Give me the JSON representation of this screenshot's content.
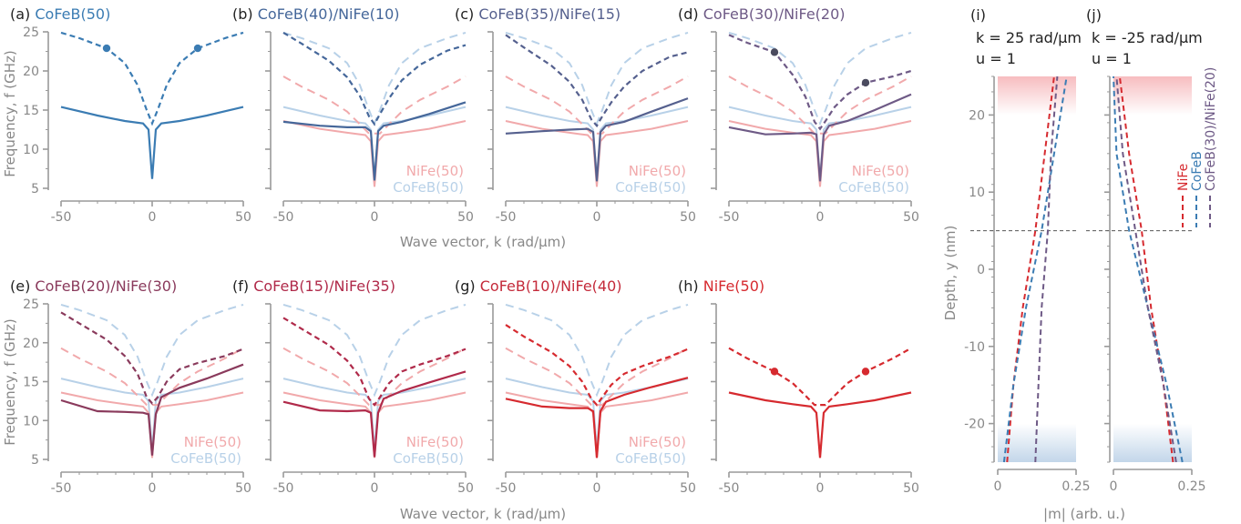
{
  "colors": {
    "cofeb": "#3b7cb3",
    "nife": "#d62a2f",
    "ref_cofeb": "#b8d1e8",
    "ref_nife": "#f1a9ab",
    "axis": "#9a9a9a",
    "label": "#888888",
    "bilayer_30_20": "#6e5a86",
    "bilayer_20_30": "#8a3a5c",
    "dot_dark": "#4b4b5f"
  },
  "shared": {
    "xlabel": "Wave vector, k (rad/µm)",
    "ylabel": "Frequency, f (GHz)",
    "ref_nife_label": "NiFe(50)",
    "ref_cofeb_label": "CoFeB(50)",
    "x_ticks": [
      "-50",
      "0",
      "50"
    ],
    "y_ticks": [
      "5",
      "10",
      "15",
      "20",
      "25"
    ]
  },
  "chart_data": [
    {
      "type": "line",
      "panel": "(a)",
      "title": "CoFeB(50)",
      "xlim": [
        -50,
        50
      ],
      "ylim": [
        5,
        25
      ],
      "series": [
        {
          "style": "solid",
          "x": [
            -50,
            -30,
            -15,
            -5,
            -2,
            0,
            2,
            5,
            15,
            30,
            50
          ],
          "y": [
            15.4,
            14.3,
            13.6,
            13.3,
            12.5,
            6.2,
            12.5,
            13.3,
            13.6,
            14.3,
            15.4
          ]
        },
        {
          "style": "dashed",
          "x": [
            -50,
            -40,
            -25,
            -15,
            -8,
            -3,
            0,
            3,
            8,
            15,
            25,
            40,
            50
          ],
          "y": [
            24.9,
            24.2,
            22.9,
            21,
            18.2,
            15,
            13.3,
            15,
            18.2,
            21,
            22.9,
            24.2,
            24.9
          ]
        }
      ],
      "points": [
        {
          "x": -25,
          "y": 22.9
        },
        {
          "x": 25,
          "y": 22.9
        }
      ]
    },
    {
      "type": "line",
      "panel": "(b)",
      "title": "CoFeB(40)/NiFe(10)",
      "xlim": [
        -50,
        50
      ],
      "ylim": [
        5,
        25
      ],
      "series": [
        {
          "style": "solid",
          "x": [
            -50,
            -30,
            -15,
            -5,
            -2,
            0,
            2,
            5,
            15,
            30,
            50
          ],
          "y": [
            13.5,
            13,
            12.8,
            12.8,
            12.3,
            6,
            12.3,
            13,
            13.5,
            14.5,
            16
          ]
        },
        {
          "style": "dashed",
          "x": [
            -50,
            -40,
            -25,
            -15,
            -8,
            -3,
            0,
            3,
            8,
            15,
            25,
            40,
            50
          ],
          "y": [
            24.9,
            23.5,
            21.3,
            19.2,
            16.8,
            14.2,
            13.2,
            14.5,
            16.5,
            18.8,
            20.8,
            22.6,
            23.3
          ]
        }
      ]
    },
    {
      "type": "line",
      "panel": "(c)",
      "title": "CoFeB(35)/NiFe(15)",
      "xlim": [
        -50,
        50
      ],
      "ylim": [
        5,
        25
      ],
      "series": [
        {
          "style": "solid",
          "x": [
            -50,
            -30,
            -15,
            -5,
            -2,
            0,
            2,
            5,
            15,
            30,
            50
          ],
          "y": [
            12,
            12.3,
            12.5,
            12.6,
            12.2,
            5.9,
            12.2,
            13,
            13.5,
            14.8,
            16.5
          ]
        },
        {
          "style": "dashed",
          "x": [
            -50,
            -40,
            -25,
            -15,
            -8,
            -3,
            0,
            3,
            8,
            15,
            25,
            40,
            50
          ],
          "y": [
            24.6,
            23,
            20.7,
            18.6,
            16.3,
            13.8,
            13,
            14.2,
            16,
            18,
            20,
            21.8,
            22.4
          ]
        }
      ]
    },
    {
      "type": "line",
      "panel": "(d)",
      "title": "CoFeB(30)/NiFe(20)",
      "xlim": [
        -50,
        50
      ],
      "ylim": [
        5,
        25
      ],
      "series": [
        {
          "style": "solid",
          "x": [
            -50,
            -30,
            -15,
            -5,
            -2,
            0,
            2,
            5,
            15,
            30,
            50
          ],
          "y": [
            12.8,
            11.9,
            12,
            12.1,
            11.9,
            5.9,
            11.9,
            13,
            13.6,
            15,
            17
          ]
        },
        {
          "style": "dashed",
          "x": [
            -50,
            -40,
            -25,
            -15,
            -8,
            -3,
            0,
            3,
            8,
            15,
            25,
            40,
            50
          ],
          "y": [
            24.6,
            23.6,
            22.4,
            19.5,
            16.7,
            13.5,
            12.6,
            13.6,
            15.4,
            17,
            18.5,
            19.3,
            20
          ]
        }
      ],
      "points": [
        {
          "x": -25,
          "y": 22.4
        },
        {
          "x": 25,
          "y": 18.5
        }
      ]
    },
    {
      "type": "line",
      "panel": "(e)",
      "title": "CoFeB(20)/NiFe(30)",
      "xlim": [
        -50,
        50
      ],
      "ylim": [
        5,
        25
      ],
      "series": [
        {
          "style": "solid",
          "x": [
            -50,
            -30,
            -15,
            -5,
            -2,
            0,
            2,
            5,
            15,
            30,
            50
          ],
          "y": [
            12.6,
            11.2,
            11.1,
            11,
            10.8,
            5.5,
            10.8,
            13,
            14.2,
            15.4,
            17.2
          ]
        },
        {
          "style": "dashed",
          "x": [
            -50,
            -40,
            -25,
            -15,
            -8,
            -3,
            0,
            3,
            8,
            15,
            25,
            40,
            50
          ],
          "y": [
            23.9,
            22.5,
            20.4,
            18.3,
            16,
            13,
            12.2,
            13,
            15,
            16.6,
            17.4,
            18.3,
            19.2
          ]
        }
      ]
    },
    {
      "type": "line",
      "panel": "(f)",
      "title": "CoFeB(15)/NiFe(35)",
      "xlim": [
        -50,
        50
      ],
      "ylim": [
        5,
        25
      ],
      "series": [
        {
          "style": "solid",
          "x": [
            -50,
            -30,
            -15,
            -5,
            -2,
            0,
            2,
            5,
            15,
            30,
            50
          ],
          "y": [
            12.4,
            11.3,
            11.2,
            11.3,
            11,
            5.3,
            11,
            12.8,
            13.8,
            14.9,
            16.3
          ]
        },
        {
          "style": "dashed",
          "x": [
            -50,
            -40,
            -25,
            -15,
            -8,
            -3,
            0,
            3,
            8,
            15,
            25,
            40,
            50
          ],
          "y": [
            23.2,
            21.8,
            19.7,
            17.7,
            15.6,
            12.8,
            12,
            13,
            14.8,
            16.3,
            17.2,
            18.3,
            19.2
          ]
        }
      ]
    },
    {
      "type": "line",
      "panel": "(g)",
      "title": "CoFeB(10)/NiFe(40)",
      "xlim": [
        -50,
        50
      ],
      "ylim": [
        5,
        25
      ],
      "series": [
        {
          "style": "solid",
          "x": [
            -50,
            -30,
            -15,
            -5,
            -2,
            0,
            2,
            5,
            15,
            30,
            50
          ],
          "y": [
            12.8,
            11.8,
            11.6,
            11.6,
            11.2,
            5.2,
            11.2,
            12.4,
            13.3,
            14.3,
            15.5
          ]
        },
        {
          "style": "dashed",
          "x": [
            -50,
            -40,
            -25,
            -15,
            -8,
            -3,
            0,
            3,
            8,
            15,
            25,
            40,
            50
          ],
          "y": [
            22.3,
            20.8,
            18.8,
            17,
            15,
            12.8,
            12,
            13,
            14.6,
            16,
            17,
            18.2,
            19.2
          ]
        }
      ]
    },
    {
      "type": "line",
      "panel": "(h)",
      "title": "NiFe(50)",
      "xlim": [
        -50,
        50
      ],
      "ylim": [
        5,
        25
      ],
      "series": [
        {
          "style": "solid",
          "x": [
            -50,
            -30,
            -15,
            -5,
            -2,
            0,
            2,
            5,
            15,
            30,
            50
          ],
          "y": [
            13.6,
            12.6,
            12.1,
            11.8,
            11,
            5.2,
            11,
            11.8,
            12.1,
            12.6,
            13.6
          ]
        },
        {
          "style": "dashed",
          "x": [
            -50,
            -40,
            -25,
            -15,
            -8,
            -3,
            0,
            3,
            8,
            15,
            25,
            40,
            50
          ],
          "y": [
            19.3,
            18,
            16.3,
            14.8,
            13.2,
            12,
            12,
            12,
            13.2,
            14.8,
            16.3,
            18,
            19.3
          ]
        }
      ],
      "points": [
        {
          "x": -25,
          "y": 16.3
        },
        {
          "x": 25,
          "y": 16.3
        }
      ]
    },
    {
      "type": "line",
      "panel": "(i)",
      "title": "k = 25 rad/µm",
      "subtitle": "u = 1",
      "xlabel": "|m| (arb. u.)",
      "ylabel": "Depth, y (nm)",
      "xlim": [
        0,
        0.25
      ],
      "ylim": [
        -25,
        25
      ],
      "x_ticks": [
        "0",
        "0.25"
      ],
      "y_ticks": [
        "-20",
        "-10",
        "0",
        "10",
        "20"
      ],
      "series": [
        {
          "name": "NiFe",
          "style": "dashed",
          "x": [
            0.03,
            0.05,
            0.08,
            0.12,
            0.15,
            0.18
          ],
          "y": [
            -25,
            -15,
            -5,
            5,
            15,
            25
          ]
        },
        {
          "name": "CoFeB",
          "style": "dashed",
          "x": [
            0.02,
            0.05,
            0.09,
            0.14,
            0.18,
            0.22
          ],
          "y": [
            -25,
            -15,
            -5,
            5,
            15,
            25
          ]
        },
        {
          "name": "CoFeB(30)/NiFe(20)",
          "style": "dashed",
          "x": [
            0.12,
            0.13,
            0.14,
            0.16,
            0.17,
            0.19
          ],
          "y": [
            -25,
            -15,
            -5,
            5,
            15,
            25
          ]
        }
      ]
    },
    {
      "type": "line",
      "panel": "(j)",
      "title": "k = -25 rad/µm",
      "subtitle": "u = 1",
      "xlim": [
        0,
        0.25
      ],
      "ylim": [
        -25,
        25
      ],
      "x_ticks": [
        "0",
        "0.25"
      ],
      "series": [
        {
          "name": "NiFe",
          "style": "dashed",
          "x": [
            0.19,
            0.16,
            0.12,
            0.09,
            0.05,
            0.02
          ],
          "y": [
            -25,
            -15,
            -5,
            5,
            15,
            25
          ]
        },
        {
          "name": "CoFeB",
          "style": "dashed",
          "x": [
            0.22,
            0.17,
            0.11,
            0.05,
            0.01,
            0.0
          ],
          "y": [
            -25,
            -15,
            -5,
            5,
            15,
            25
          ]
        },
        {
          "name": "CoFeB(30)/NiFe(20)",
          "style": "dashed",
          "x": [
            0.2,
            0.16,
            0.11,
            0.07,
            0.03,
            0.01
          ],
          "y": [
            -25,
            -15,
            -5,
            5,
            15,
            25
          ]
        }
      ]
    }
  ]
}
